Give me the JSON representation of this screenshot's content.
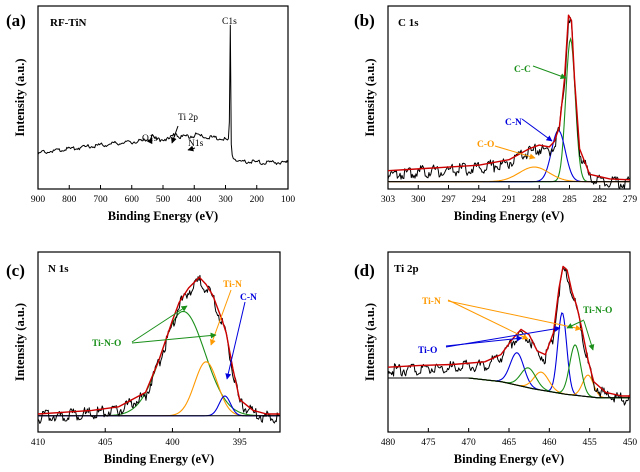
{
  "figure": {
    "style": "XPS spectra, four panels"
  },
  "chart_data": [
    {
      "type": "line",
      "panel": "(a)",
      "title": "RF-TiN",
      "xlabel": "Binding Energy (eV)",
      "ylabel": "Intensity (a.u.)",
      "xlim": [
        900,
        100
      ],
      "x_ticks": [
        900,
        800,
        700,
        600,
        500,
        400,
        300,
        200,
        100
      ],
      "ylim": [
        0,
        100
      ],
      "grid": false,
      "series": [
        {
          "name": "survey",
          "color": "#000000",
          "points": [
            [
              900,
              20
            ],
            [
              850,
              21.5
            ],
            [
              800,
              22.5
            ],
            [
              750,
              23.5
            ],
            [
              700,
              24.5
            ],
            [
              650,
              25.5
            ],
            [
              600,
              26.3
            ],
            [
              560,
              27
            ],
            [
              540,
              28
            ],
            [
              533,
              31
            ],
            [
              530,
              28.5
            ],
            [
              520,
              27.5
            ],
            [
              500,
              27.8
            ],
            [
              480,
              28
            ],
            [
              462,
              30.2
            ],
            [
              458,
              32
            ],
            [
              455,
              30
            ],
            [
              440,
              29
            ],
            [
              420,
              29.3
            ],
            [
              400,
              29.8
            ],
            [
              398,
              31
            ],
            [
              395,
              30
            ],
            [
              380,
              29.5
            ],
            [
              350,
              29
            ],
            [
              320,
              28.5
            ],
            [
              300,
              28
            ],
            [
              290,
              27
            ],
            [
              287,
              40
            ],
            [
              285,
              97
            ],
            [
              283,
              60
            ],
            [
              282,
              27
            ],
            [
              278,
              19
            ],
            [
              270,
              17
            ],
            [
              260,
              16
            ],
            [
              240,
              15.5
            ],
            [
              200,
              15.2
            ],
            [
              150,
              15
            ],
            [
              100,
              15
            ]
          ]
        }
      ],
      "annotations": [
        {
          "text": "C1s",
          "x": 285,
          "y": 99
        },
        {
          "text": "Ti 2p",
          "x": 458,
          "y": 45
        },
        {
          "text": "O1s",
          "x": 530,
          "y": 37
        },
        {
          "text": "N1s",
          "x": 398,
          "y": 32
        }
      ]
    },
    {
      "type": "line",
      "panel": "(b)",
      "title": "C 1s",
      "xlabel": "Binding Energy (eV)",
      "ylabel": "Intensity (a.u.)",
      "xlim": [
        303,
        279
      ],
      "x_ticks": [
        303,
        300,
        297,
        294,
        291,
        288,
        285,
        282,
        279
      ],
      "ylim": [
        0,
        100
      ],
      "grid": false,
      "series": [
        {
          "name": "Raw",
          "color": "#000000",
          "points": [
            [
              303,
              10
            ],
            [
              300,
              11
            ],
            [
              297,
              12
            ],
            [
              294,
              13
            ],
            [
              291,
              16
            ],
            [
              289,
              22
            ],
            [
              288,
              24
            ],
            [
              287,
              23
            ],
            [
              286.5,
              26
            ],
            [
              286,
              34
            ],
            [
              285.5,
              60
            ],
            [
              285.1,
              95
            ],
            [
              284.8,
              92
            ],
            [
              284.5,
              60
            ],
            [
              284,
              22
            ],
            [
              283,
              8
            ],
            [
              281,
              5.5
            ],
            [
              279,
              5
            ]
          ]
        },
        {
          "name": "Fit envelope",
          "color": "#cc0000",
          "points": [
            [
              303,
              10
            ],
            [
              300,
              11
            ],
            [
              297,
              12
            ],
            [
              294,
              13
            ],
            [
              291,
              16
            ],
            [
              289,
              22
            ],
            [
              288,
              24
            ],
            [
              287,
              23
            ],
            [
              286.5,
              26
            ],
            [
              286,
              34
            ],
            [
              285.5,
              60
            ],
            [
              285.1,
              95
            ],
            [
              284.8,
              92
            ],
            [
              284.5,
              60
            ],
            [
              284,
              22
            ],
            [
              283,
              8
            ],
            [
              281,
              5.5
            ],
            [
              279,
              5
            ]
          ]
        },
        {
          "name": "C-C",
          "color": "#1a8f1a",
          "peak": {
            "center": 284.9,
            "height": 78,
            "fwhm": 1.1
          }
        },
        {
          "name": "C-N",
          "color": "#0000dd",
          "peak": {
            "center": 286.1,
            "height": 28,
            "fwhm": 1.6
          }
        },
        {
          "name": "C-O",
          "color": "#ff9900",
          "peak": {
            "center": 288.5,
            "height": 8,
            "fwhm": 3.5
          }
        },
        {
          "name": "Background",
          "color": "#000000",
          "points": [
            [
              303,
              4
            ],
            [
              279,
              4
            ]
          ]
        }
      ],
      "annotations": [
        {
          "text": "C-C",
          "x": 290.3,
          "y": 82
        },
        {
          "text": "C-N",
          "x": 288.5,
          "y": 55
        },
        {
          "text": "C-O",
          "x": 290.5,
          "y": 30
        }
      ]
    },
    {
      "type": "line",
      "panel": "(c)",
      "title": "N 1s",
      "xlabel": "Binding Energy (eV)",
      "ylabel": "Intensity (a.u.)",
      "xlim": [
        410,
        392
      ],
      "x_ticks": [
        410,
        405,
        400,
        395
      ],
      "ylim": [
        0,
        100
      ],
      "grid": false,
      "series": [
        {
          "name": "Raw",
          "color": "#000000",
          "points": [
            [
              410,
              10
            ],
            [
              408,
              11
            ],
            [
              406,
              12
            ],
            [
              404,
              14
            ],
            [
              402,
              22
            ],
            [
              401,
              40
            ],
            [
              400,
              62
            ],
            [
              399.5,
              72
            ],
            [
              398.8,
              80
            ],
            [
              398,
              86
            ],
            [
              397.5,
              82
            ],
            [
              397,
              76
            ],
            [
              396.7,
              70
            ],
            [
              396.3,
              62
            ],
            [
              396,
              55
            ],
            [
              395.5,
              35
            ],
            [
              395,
              18
            ],
            [
              394,
              12
            ],
            [
              393,
              10
            ],
            [
              392,
              10
            ]
          ]
        },
        {
          "name": "Fit envelope",
          "color": "#cc0000",
          "points": [
            [
              410,
              10
            ],
            [
              408,
              11
            ],
            [
              406,
              12
            ],
            [
              404,
              14
            ],
            [
              402,
              22
            ],
            [
              401,
              40
            ],
            [
              400,
              62
            ],
            [
              399.5,
              72
            ],
            [
              398.8,
              80
            ],
            [
              398,
              86
            ],
            [
              397.5,
              82
            ],
            [
              397,
              76
            ],
            [
              396.7,
              70
            ],
            [
              396.3,
              62
            ],
            [
              396,
              55
            ],
            [
              395.5,
              35
            ],
            [
              395,
              18
            ],
            [
              394,
              12
            ],
            [
              393,
              10
            ],
            [
              392,
              10
            ]
          ]
        },
        {
          "name": "Ti-N-O",
          "color": "#1a8f1a",
          "peak": {
            "center": 399.2,
            "height": 58,
            "fwhm": 3.8
          }
        },
        {
          "name": "Ti-N",
          "color": "#ff9900",
          "peak": {
            "center": 397.5,
            "height": 30,
            "fwhm": 2.0
          }
        },
        {
          "name": "C-N",
          "color": "#0000dd",
          "peak": {
            "center": 396.1,
            "height": 11,
            "fwhm": 1.0
          }
        },
        {
          "name": "Background",
          "color": "#000000",
          "points": [
            [
              410,
              9
            ],
            [
              392,
              9
            ]
          ]
        }
      ],
      "annotations": [
        {
          "text": "Ti-N",
          "x": 397,
          "y": 90
        },
        {
          "text": "C-N",
          "x": 394.5,
          "y": 78
        },
        {
          "text": "Ti-N-O",
          "x": 404,
          "y": 52
        }
      ]
    },
    {
      "type": "line",
      "panel": "(d)",
      "title": "Ti 2p",
      "xlabel": "Binding Energy (eV)",
      "ylabel": "Intensity (a.u.)",
      "xlim": [
        480,
        450
      ],
      "x_ticks": [
        480,
        475,
        470,
        465,
        460,
        455,
        450
      ],
      "ylim": [
        0,
        100
      ],
      "grid": false,
      "series": [
        {
          "name": "Raw",
          "color": "#000000",
          "points": [
            [
              480,
              36
            ],
            [
              476,
              37
            ],
            [
              472,
              37.5
            ],
            [
              468,
              39
            ],
            [
              466,
              43
            ],
            [
              464.5,
              52
            ],
            [
              463.5,
              57
            ],
            [
              462.5,
              54
            ],
            [
              461.5,
              45
            ],
            [
              460.5,
              43
            ],
            [
              459.5,
              55
            ],
            [
              458.8,
              80
            ],
            [
              458.3,
              92
            ],
            [
              457.8,
              90
            ],
            [
              457.2,
              78
            ],
            [
              456.6,
              70
            ],
            [
              456,
              58
            ],
            [
              455.2,
              40
            ],
            [
              454.5,
              28
            ],
            [
              453,
              22
            ],
            [
              451,
              20
            ],
            [
              450,
              20
            ]
          ]
        },
        {
          "name": "Fit envelope",
          "color": "#cc0000",
          "points": [
            [
              480,
              36
            ],
            [
              476,
              37
            ],
            [
              472,
              37.5
            ],
            [
              468,
              39
            ],
            [
              466,
              43
            ],
            [
              464.5,
              52
            ],
            [
              463.5,
              57
            ],
            [
              462.5,
              54
            ],
            [
              461.5,
              45
            ],
            [
              460.5,
              43
            ],
            [
              459.5,
              55
            ],
            [
              458.8,
              80
            ],
            [
              458.3,
              92
            ],
            [
              457.8,
              90
            ],
            [
              457.2,
              78
            ],
            [
              456.6,
              70
            ],
            [
              456,
              58
            ],
            [
              455.2,
              40
            ],
            [
              454.5,
              28
            ],
            [
              453,
              22
            ],
            [
              451,
              20
            ],
            [
              450,
              20
            ]
          ]
        },
        {
          "name": "Ti-O",
          "color": "#0000dd",
          "peaks": [
            {
              "center": 458.4,
              "height": 45,
              "fwhm": 1.3
            },
            {
              "center": 464.0,
              "height": 18,
              "fwhm": 2.0
            }
          ]
        },
        {
          "name": "Ti-N",
          "color": "#ff9900",
          "peaks": [
            {
              "center": 455.2,
              "height": 12,
              "fwhm": 1.6
            },
            {
              "center": 461.0,
              "height": 10,
              "fwhm": 2.2
            }
          ]
        },
        {
          "name": "Ti-N-O",
          "color": "#1a8f1a",
          "peaks": [
            {
              "center": 456.8,
              "height": 28,
              "fwhm": 1.6
            },
            {
              "center": 462.6,
              "height": 11,
              "fwhm": 2.2
            }
          ]
        },
        {
          "name": "Background",
          "color": "#000000",
          "points": [
            [
              480,
              30
            ],
            [
              470,
              30
            ],
            [
              466,
              28
            ],
            [
              462,
              24
            ],
            [
              458,
              21
            ],
            [
              454,
              19
            ],
            [
              450,
              19
            ]
          ]
        }
      ],
      "annotations": [
        {
          "text": "Ti-N",
          "x": 475,
          "y": 72
        },
        {
          "text": "Ti-O",
          "x": 477,
          "y": 46
        },
        {
          "text": "Ti-N-O",
          "x": 454,
          "y": 82
        }
      ]
    }
  ]
}
